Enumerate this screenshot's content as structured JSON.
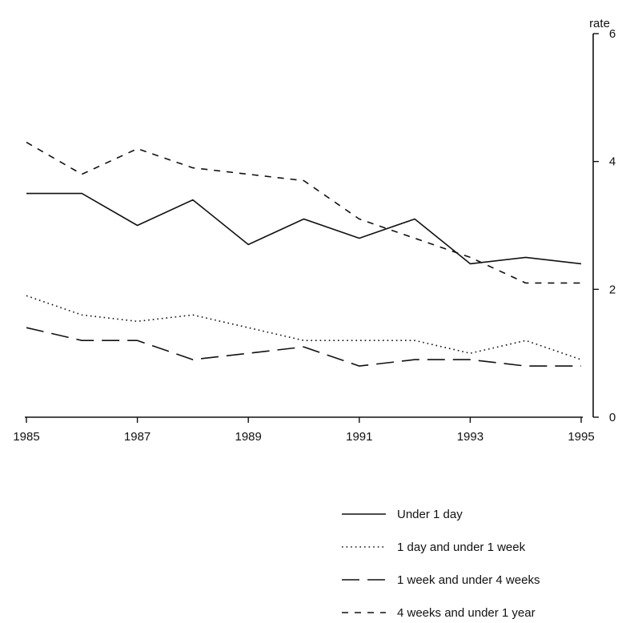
{
  "chart_data": {
    "type": "line",
    "ylabel": "rate",
    "x": [
      1985,
      1986,
      1987,
      1988,
      1989,
      1990,
      1991,
      1992,
      1993,
      1994,
      1995
    ],
    "x_ticks": [
      "1985",
      "1987",
      "1989",
      "1991",
      "1993",
      "1995"
    ],
    "y_ticks": [
      "0",
      "2",
      "4",
      "6"
    ],
    "xlim": [
      1985,
      1995
    ],
    "ylim": [
      0,
      6
    ],
    "grid": false,
    "legend_position": "bottom-right",
    "series": [
      {
        "name": "Under 1 day",
        "dash": "solid",
        "values": [
          3.5,
          3.5,
          3.0,
          3.4,
          2.7,
          3.1,
          2.8,
          3.1,
          2.4,
          2.5,
          2.4
        ]
      },
      {
        "name": "1 day and under 1 week",
        "dash": "dotted",
        "values": [
          1.9,
          1.6,
          1.5,
          1.6,
          1.4,
          1.2,
          1.2,
          1.2,
          1.0,
          1.2,
          0.9
        ]
      },
      {
        "name": "1 week and under 4 weeks",
        "dash": "long-dash",
        "values": [
          1.4,
          1.2,
          1.2,
          0.9,
          1.0,
          1.1,
          0.8,
          0.9,
          0.9,
          0.8,
          0.8
        ]
      },
      {
        "name": "4 weeks and under 1 year",
        "dash": "short-dash",
        "values": [
          4.3,
          3.8,
          4.2,
          3.9,
          3.8,
          3.7,
          3.1,
          2.8,
          2.5,
          2.1,
          2.1
        ]
      }
    ]
  }
}
